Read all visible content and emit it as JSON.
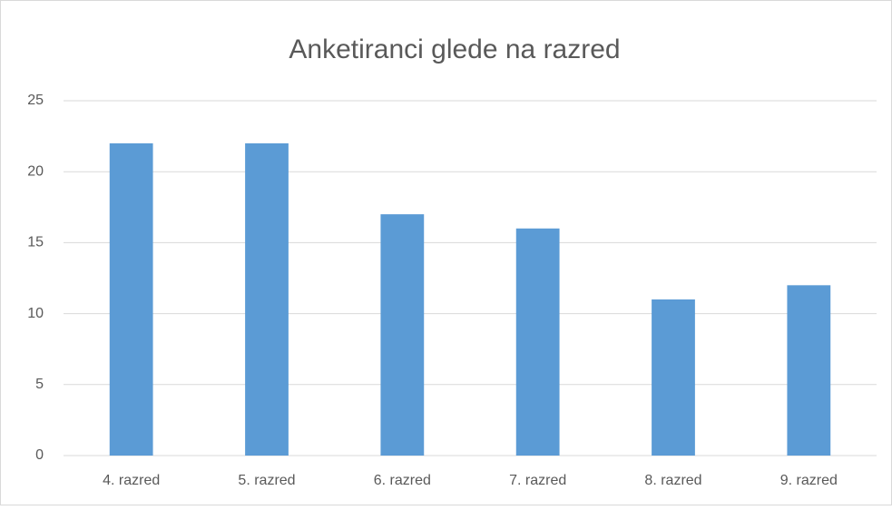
{
  "chart_data": {
    "type": "bar",
    "title": "Anketiranci glede na razred",
    "categories": [
      "4. razred",
      "5. razred",
      "6. razred",
      "7. razred",
      "8. razred",
      "9. razred"
    ],
    "values": [
      22,
      22,
      17,
      16,
      11,
      12
    ],
    "color": "#5b9bd5",
    "ylim": [
      0,
      25
    ],
    "yticks": [
      0,
      5,
      10,
      15,
      20,
      25
    ],
    "grid": true
  }
}
